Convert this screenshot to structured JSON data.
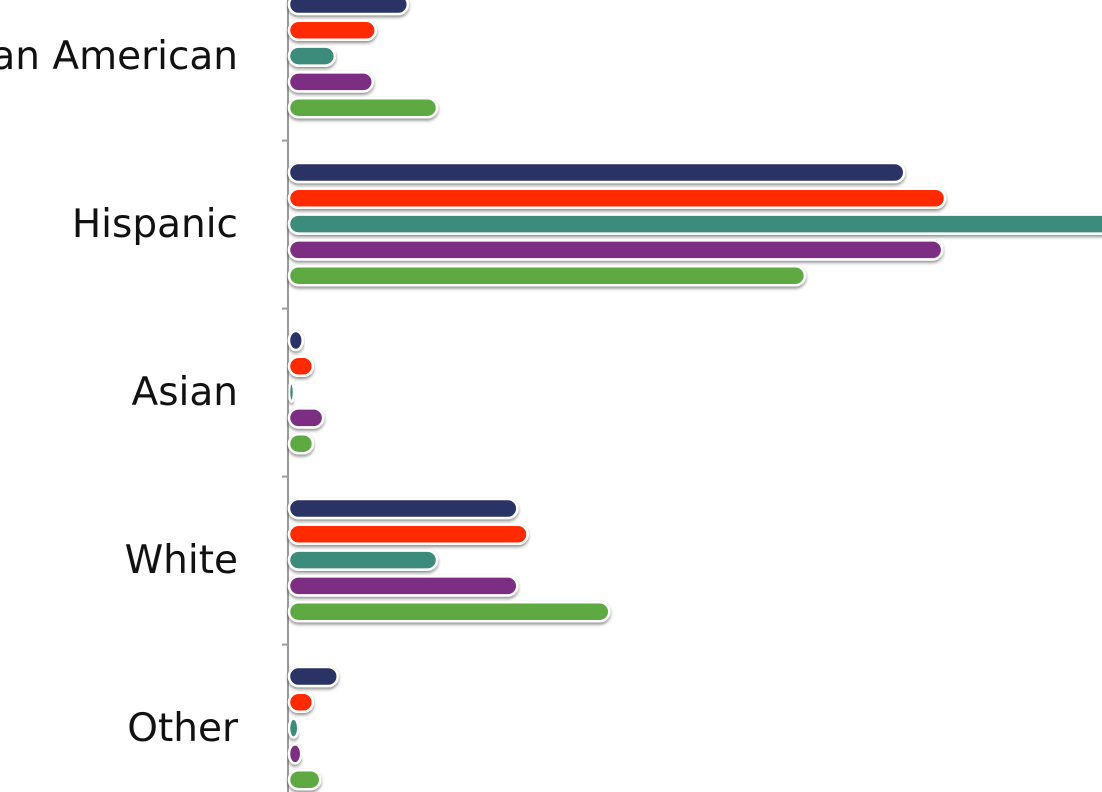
{
  "chart_data": {
    "type": "bar",
    "orientation": "horizontal",
    "categories": [
      "African American",
      "Hispanic",
      "Asian",
      "White",
      "Other"
    ],
    "series": [
      {
        "color": "#2b3166",
        "values": [
          8,
          42,
          0.8,
          15.5,
          3.2
        ]
      },
      {
        "color": "#ff2a00",
        "values": [
          5.8,
          44.8,
          1.5,
          16.2,
          1.5
        ]
      },
      {
        "color": "#3e8b7a",
        "values": [
          3,
          56.2,
          0.1,
          10,
          0.5
        ]
      },
      {
        "color": "#7b2e83",
        "values": [
          5.6,
          44.6,
          2.2,
          15.5,
          0.7
        ]
      },
      {
        "color": "#5fa943",
        "values": [
          10,
          35.2,
          1.5,
          21.8,
          2
        ]
      }
    ],
    "xlim": [
      0,
      56
    ],
    "grid": false,
    "legend": "none"
  }
}
